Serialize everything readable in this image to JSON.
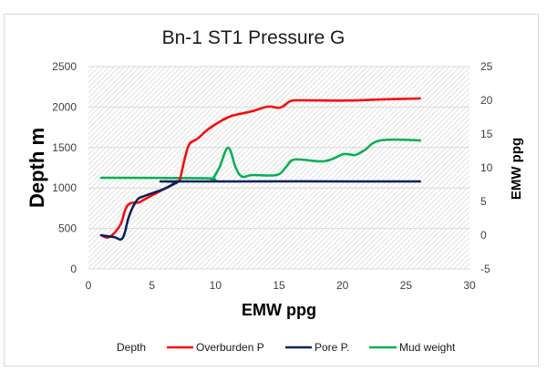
{
  "chart_data": {
    "type": "line",
    "title": "Bn-1 ST1 Pressure G",
    "xlabel": "EMW ppg",
    "ylabel": "Depth m",
    "y2label": "EMW ppg",
    "xlim": [
      0,
      30
    ],
    "ylim": [
      0,
      2500
    ],
    "y2lim": [
      -5,
      25
    ],
    "xticks": [
      "0",
      "5",
      "10",
      "15",
      "20",
      "25",
      "30"
    ],
    "yticks": [
      "0",
      "500",
      "1000",
      "1500",
      "2000",
      "2500"
    ],
    "y2ticks": [
      "-5",
      "0",
      "5",
      "10",
      "15",
      "20",
      "25"
    ],
    "grid": true,
    "legend_position": "bottom",
    "legend": [
      {
        "name": "Depth",
        "color": ""
      },
      {
        "name": "Overburden P",
        "color": "#ff0000"
      },
      {
        "name": "Pore P.",
        "color": "#002060"
      },
      {
        "name": "Mud weight",
        "color": "#00b050"
      }
    ],
    "series": [
      {
        "name": "Overburden P",
        "color": "#ff0000",
        "x": [
          1.0,
          1.65,
          2.5,
          2.9,
          3.3,
          4.0,
          4.5,
          6.0,
          7.0,
          7.2,
          7.6,
          7.95,
          8.6,
          9.4,
          10.4,
          11.3,
          12.9,
          14.1,
          15.1,
          15.9,
          16.7,
          20.3,
          23.2,
          26.1
        ],
        "y": [
          417,
          394,
          540,
          732,
          811,
          822,
          867,
          991,
          1081,
          1104,
          1374,
          1543,
          1610,
          1723,
          1824,
          1892,
          1948,
          2005,
          1993,
          2072,
          2083,
          2080,
          2095,
          2106
        ]
      },
      {
        "name": "Pore P.",
        "color": "#002060",
        "x": [
          1.0,
          2.0,
          2.7,
          3.2,
          3.8,
          4.4,
          6.0,
          7.0,
          7.2,
          26.1
        ],
        "y": [
          417,
          394,
          383,
          653,
          845,
          901,
          991,
          1070,
          1081,
          1081
        ]
      },
      {
        "name": "Mud weight",
        "color": "#00b050",
        "x": [
          1.0,
          9.2,
          9.7,
          10.3,
          11.0,
          11.6,
          12.1,
          12.9,
          14.8,
          15.5,
          16.0,
          16.7,
          18.2,
          19.1,
          20.1,
          21.0,
          21.7,
          23.0,
          26.1
        ],
        "y": [
          1126,
          1120,
          1104,
          1250,
          1498,
          1250,
          1140,
          1160,
          1160,
          1250,
          1340,
          1351,
          1329,
          1351,
          1419,
          1408,
          1464,
          1588,
          1588
        ]
      }
    ]
  }
}
